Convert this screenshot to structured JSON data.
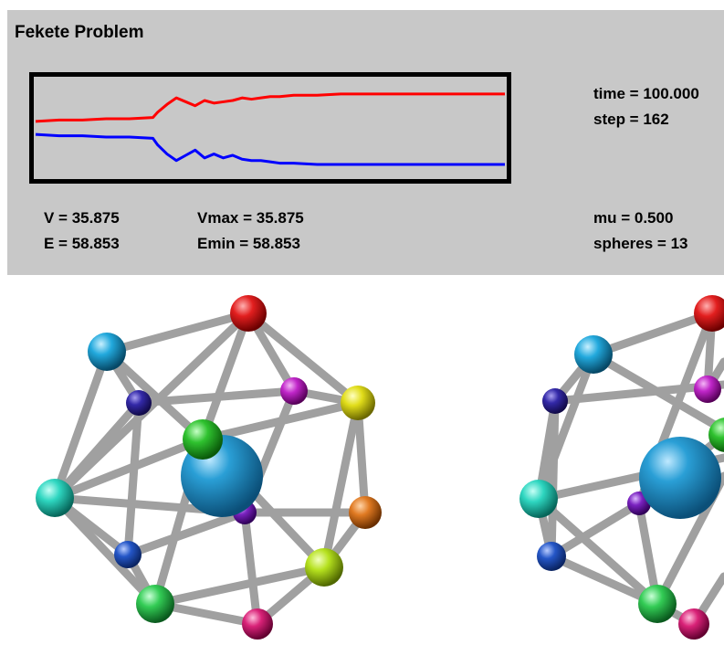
{
  "title": "Fekete Problem",
  "readouts": {
    "V": "V = 35.875",
    "E": "E = 58.853",
    "Vmax": "Vmax = 35.875",
    "Emin": "Emin = 58.853",
    "time": "time = 100.000",
    "step": "step = 162",
    "mu": "mu = 0.500",
    "spheres": "spheres = 13"
  },
  "colors": {
    "panel": "#c8c8c8",
    "top_trace": "#ff0000",
    "bottom_trace": "#0000ff",
    "rods": "#a8a8a8",
    "center_sphere": "#2a9fd6"
  },
  "chart_data": {
    "type": "line",
    "series": [
      {
        "color": "#ff0000",
        "x": [
          0,
          5,
          10,
          15,
          20,
          25,
          26,
          28,
          30,
          32,
          34,
          36,
          38,
          40,
          42,
          44,
          46,
          48,
          50,
          52,
          55,
          60,
          65,
          70,
          80,
          90,
          100
        ],
        "y": [
          40,
          41,
          41,
          42,
          42,
          43,
          47,
          53,
          58,
          55,
          52,
          56,
          54,
          55,
          56,
          58,
          57,
          58,
          59,
          59,
          60,
          60,
          61,
          61,
          61,
          61,
          61
        ]
      },
      {
        "color": "#0000ff",
        "x": [
          0,
          5,
          10,
          15,
          20,
          25,
          26,
          28,
          30,
          32,
          34,
          36,
          38,
          40,
          42,
          44,
          46,
          48,
          50,
          52,
          55,
          60,
          65,
          70,
          80,
          90,
          100
        ],
        "y": [
          30,
          29,
          29,
          28,
          28,
          27,
          22,
          15,
          10,
          14,
          18,
          12,
          15,
          12,
          14,
          11,
          10,
          10,
          9,
          8,
          8,
          7,
          7,
          7,
          7,
          7,
          7
        ]
      }
    ],
    "xlim": [
      0,
      100
    ],
    "ylim": [
      0,
      70
    ],
    "grid": false
  },
  "scene": {
    "left_cluster": {
      "center": {
        "color": "#2a9fd6"
      },
      "spheres": [
        {
          "name": "sphere-red",
          "color": "#e21f1f"
        },
        {
          "name": "sphere-cyan",
          "color": "#22a9dd"
        },
        {
          "name": "sphere-magenta",
          "color": "#c026c9"
        },
        {
          "name": "sphere-yellow",
          "color": "#e1dd1a"
        },
        {
          "name": "sphere-indigo",
          "color": "#3329a8"
        },
        {
          "name": "sphere-green",
          "color": "#2fc22f"
        },
        {
          "name": "sphere-teal",
          "color": "#2ed6c0"
        },
        {
          "name": "sphere-orange",
          "color": "#e07a22"
        },
        {
          "name": "sphere-purple",
          "color": "#7a22c0"
        },
        {
          "name": "sphere-blue",
          "color": "#2456c7"
        },
        {
          "name": "sphere-lime",
          "color": "#b5e11e"
        },
        {
          "name": "sphere-emerald",
          "color": "#33cc55"
        },
        {
          "name": "sphere-pink",
          "color": "#d92278"
        }
      ]
    }
  }
}
